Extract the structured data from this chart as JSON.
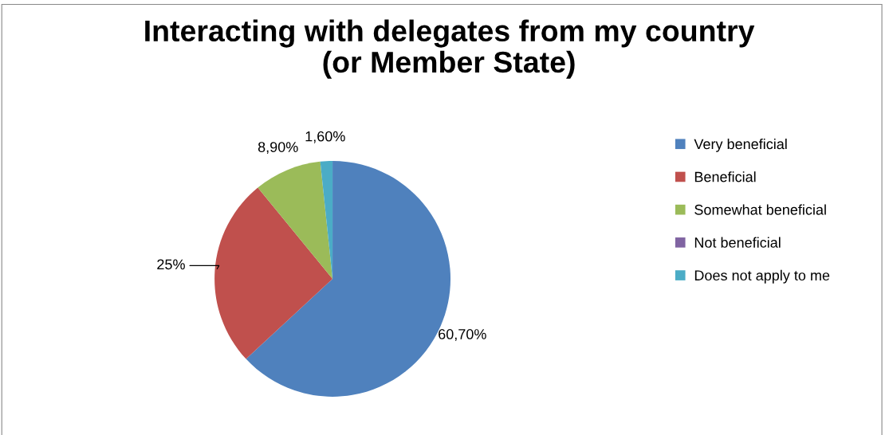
{
  "chart_data": {
    "type": "pie",
    "title": "Interacting with delegates from my country\n(or Member State)",
    "categories": [
      "Very beneficial",
      "Beneficial",
      "Somewhat beneficial",
      "Not beneficial",
      "Does not apply to me"
    ],
    "values": [
      60.7,
      25,
      8.9,
      0,
      1.6
    ],
    "colors": [
      "#4f81bd",
      "#c0504d",
      "#9bbb59",
      "#8064a2",
      "#4bacc6"
    ],
    "value_labels": [
      "60,70%",
      "25%",
      "8,90%",
      null,
      "1,60%"
    ],
    "legend": "right"
  }
}
